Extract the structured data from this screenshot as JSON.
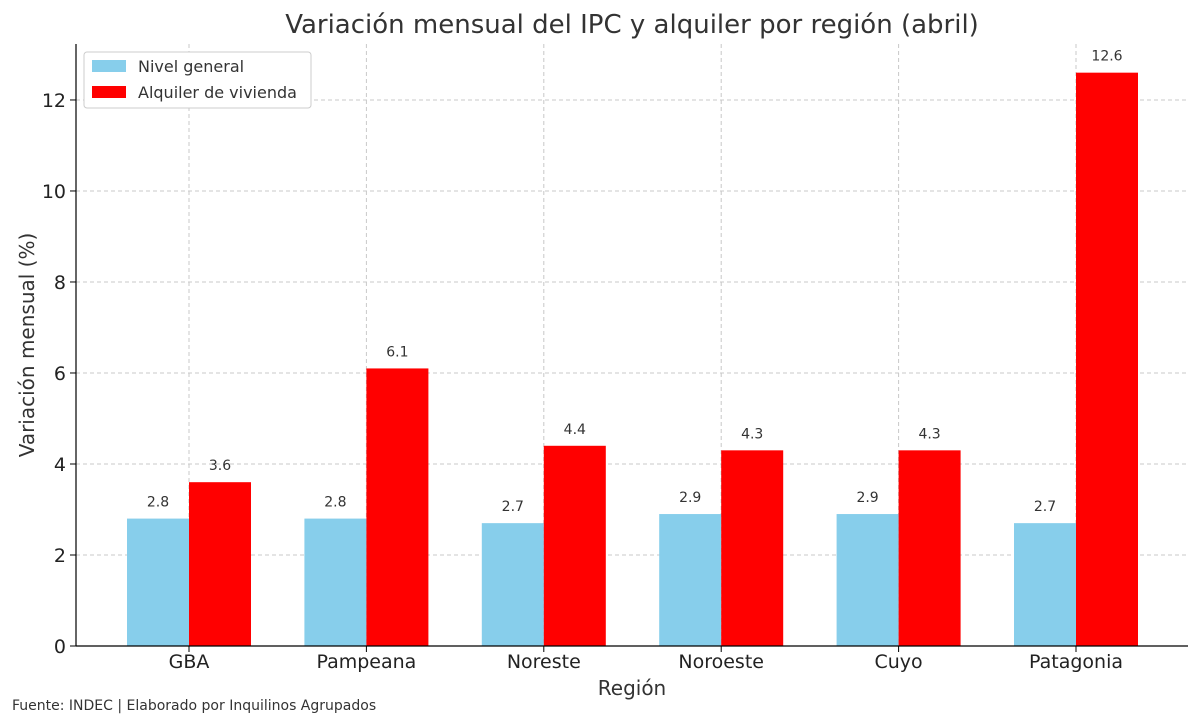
{
  "chart_data": {
    "type": "bar",
    "title": "Variación mensual del IPC y alquiler por región (abril)",
    "xlabel": "Región",
    "ylabel": "Variación mensual (%)",
    "categories": [
      "GBA",
      "Pampeana",
      "Noreste",
      "Noroeste",
      "Cuyo",
      "Patagonia"
    ],
    "series": [
      {
        "name": "Nivel general",
        "color": "#87CEEB",
        "values": [
          2.8,
          2.8,
          2.7,
          2.9,
          2.9,
          2.7
        ]
      },
      {
        "name": "Alquiler de vivienda",
        "color": "#FF0000",
        "values": [
          3.6,
          6.1,
          4.4,
          4.3,
          4.3,
          12.6
        ]
      }
    ],
    "ylim": [
      0,
      13.23
    ],
    "yticks": [
      0,
      2,
      4,
      6,
      8,
      10,
      12
    ],
    "grid": true,
    "legend": "top-left"
  },
  "footer": {
    "source": "Fuente: INDEC | Elaborado por Inquilinos Agrupados"
  }
}
